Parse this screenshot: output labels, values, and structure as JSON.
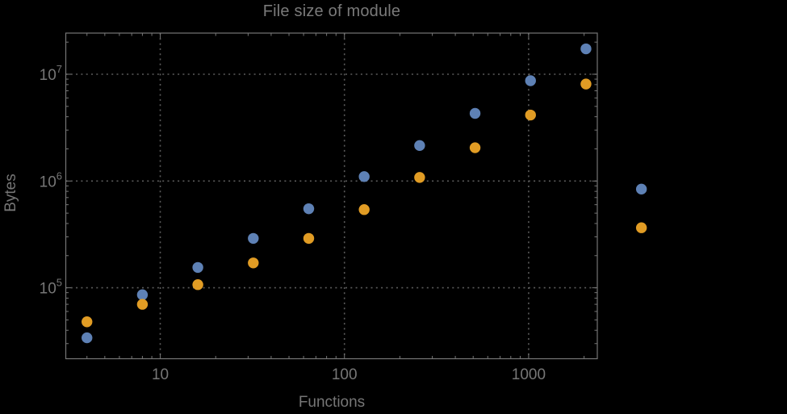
{
  "title": "File size of module",
  "colors": {
    "background": "#000000",
    "frame": "#767676",
    "text": "#767676",
    "grid": "#5c5c5c",
    "series_blue": "#5E81B5",
    "series_orange": "#E19C24"
  },
  "chart_data": {
    "type": "scatter",
    "title": "File size of module",
    "xlabel": "Functions",
    "ylabel": "Bytes",
    "x_scale": "log",
    "y_scale": "log",
    "xlim": [
      3.07,
      2360
    ],
    "ylim": [
      21650,
      24300000
    ],
    "grid": "dotted lines at decades only",
    "legend": "none",
    "x_ticks": [
      {
        "value": 10,
        "label": "10"
      },
      {
        "value": 100,
        "label": "100"
      },
      {
        "value": 1000,
        "label": "1000"
      }
    ],
    "y_ticks": [
      {
        "value": 100000,
        "mantissa": "10",
        "exponent": "5"
      },
      {
        "value": 1000000,
        "mantissa": "10",
        "exponent": "6"
      },
      {
        "value": 10000000,
        "mantissa": "10",
        "exponent": "7"
      }
    ],
    "x": [
      4,
      8,
      16,
      32,
      64,
      128,
      256,
      512,
      1024,
      2048,
      4096
    ],
    "series": [
      {
        "name": "series-blue",
        "color": "#5E81B5",
        "values": [
          34000,
          86000,
          155000,
          290000,
          550000,
          1100000,
          2150000,
          4300000,
          8700000,
          17300000,
          840000
        ]
      },
      {
        "name": "series-orange",
        "color": "#E19C24",
        "values": [
          48000,
          70000,
          107000,
          171000,
          290000,
          540000,
          1080000,
          2050000,
          4150000,
          8100000,
          365000
        ]
      }
    ]
  }
}
